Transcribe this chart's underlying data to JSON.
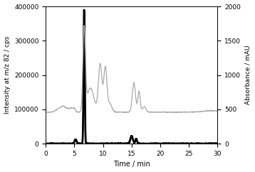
{
  "xlim": [
    0,
    30
  ],
  "ylim_left": [
    0,
    400000
  ],
  "ylim_right": [
    0,
    2000
  ],
  "xlabel": "Time / min",
  "ylabel_left": "Intensity at m/z 82 / cps",
  "ylabel_right": "Absorbance / mAU",
  "yticks_left": [
    0,
    100000,
    200000,
    300000,
    400000
  ],
  "yticks_right": [
    0,
    500,
    1000,
    1500,
    2000
  ],
  "xticks": [
    0,
    5,
    10,
    15,
    20,
    25,
    30
  ],
  "bold_line_color": "#000000",
  "thin_line_color": "#aaaaaa",
  "background_color": "#ffffff",
  "bold_linewidth": 2.0,
  "thin_linewidth": 0.9,
  "baseline_uv": 460,
  "baseline_se": 0
}
